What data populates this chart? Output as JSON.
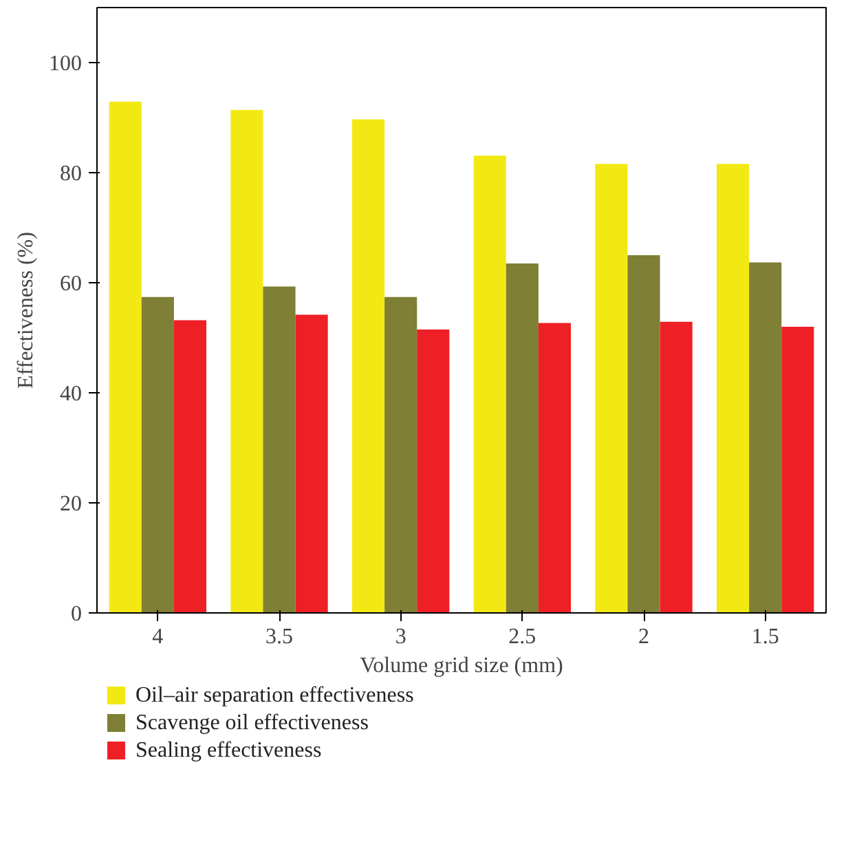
{
  "chart_data": {
    "type": "bar",
    "xlabel": "Volume grid size (mm)",
    "ylabel": "Effectiveness (%)",
    "categories": [
      "4",
      "3.5",
      "3",
      "2.5",
      "2",
      "1.5"
    ],
    "series": [
      {
        "name": "Oil–air separation effectiveness",
        "color": "#f2e914",
        "values": [
          92.9,
          91.4,
          89.7,
          83.1,
          81.6,
          81.6
        ]
      },
      {
        "name": "Scavenge oil effectiveness",
        "color": "#7f7f35",
        "values": [
          57.4,
          59.3,
          57.4,
          63.5,
          65.0,
          63.7
        ]
      },
      {
        "name": "Sealing effectiveness",
        "color": "#ee2026",
        "values": [
          53.2,
          54.2,
          51.5,
          52.7,
          52.9,
          52.0
        ]
      }
    ],
    "ylim": [
      0,
      110
    ],
    "yticks": [
      0,
      20,
      40,
      60,
      80,
      100
    ],
    "grid": false,
    "legend": "bottom"
  }
}
